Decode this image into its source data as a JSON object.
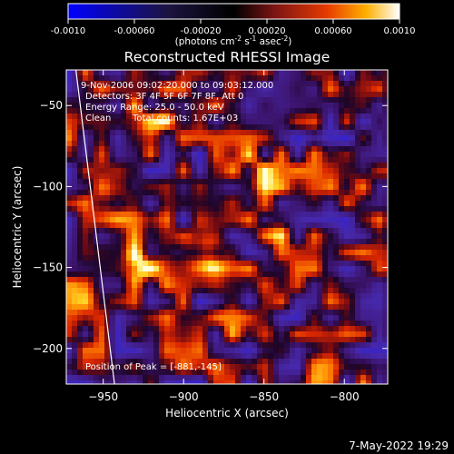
{
  "colorbar": {
    "ticks": [
      "-0.0010",
      "-0.00060",
      "-0.00020",
      "0.00020",
      "0.00060",
      "0.0010"
    ],
    "unit_main": "(photons cm",
    "unit_sup1": "-2",
    "unit_mid1": " s",
    "unit_sup2": "-1",
    "unit_mid2": " asec",
    "unit_sup3": "-2",
    "unit_end": ")"
  },
  "annotations": {
    "time": "9-Nov-2006 09:02:20.000 to 09:03:12.000",
    "detectors": "Detectors: 3F 4F 5F 6F 7F 8F, Att 0",
    "energy": "Energy Range: 25.0 - 50.0 keV",
    "clean": "Clean",
    "counts": "Total counts: 1.67E+03",
    "peak": "Position of Peak = [-881,-145]"
  },
  "footer": {
    "date": "7-May-2022 19:29"
  },
  "chart_data": {
    "type": "heatmap",
    "title": "Reconstructed RHESSI Image",
    "xlabel": "Heliocentric X (arcsec)",
    "ylabel": "Heliocentric Y (arcsec)",
    "xlim": [
      -973,
      -773
    ],
    "ylim": [
      -222,
      -28
    ],
    "x_ticks": [
      -950,
      -900,
      -850,
      -800
    ],
    "y_ticks": [
      -50,
      -100,
      -150,
      -200
    ],
    "color_range": [
      -0.001,
      0.001
    ],
    "peak": {
      "x": -881,
      "y": -145
    },
    "hot_spots": [
      {
        "x": -885,
        "y": -140,
        "value": 0.00095
      },
      {
        "x": -924,
        "y": -150,
        "value": 0.0008
      },
      {
        "x": -843,
        "y": -121,
        "value": 0.0005
      },
      {
        "x": -855,
        "y": -90,
        "value": 0.0006
      },
      {
        "x": -920,
        "y": -60,
        "value": 0.0006
      },
      {
        "x": -793,
        "y": -100,
        "value": 0.0005
      },
      {
        "x": -940,
        "y": -110,
        "value": 0.0004
      },
      {
        "x": -812,
        "y": -210,
        "value": 0.0005
      },
      {
        "x": -870,
        "y": -180,
        "value": 0.0004
      },
      {
        "x": -960,
        "y": -170,
        "value": 0.0004
      }
    ],
    "limb_curve": [
      {
        "x": -967,
        "y": -28
      },
      {
        "x": -955,
        "y": -125
      },
      {
        "x": -943,
        "y": -222
      }
    ]
  }
}
